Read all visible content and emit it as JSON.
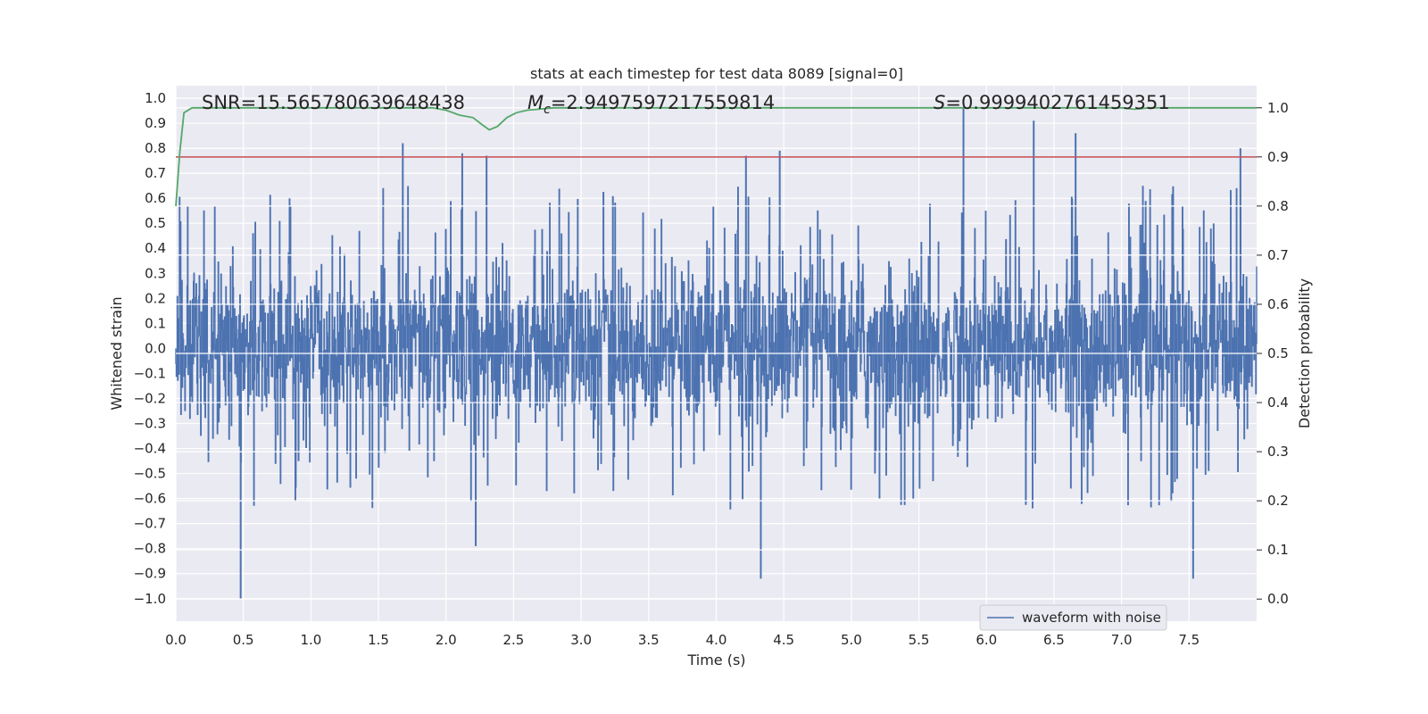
{
  "chart_data": {
    "type": "line",
    "title": "stats at each timestep for test data 8089 [signal=0]",
    "xlabel": "Time (s)",
    "ylabel_left": "Whitened strain",
    "ylabel_right": "Detection probability",
    "xlim": [
      0.0,
      8.0
    ],
    "ylim_left": [
      -1.09,
      1.05
    ],
    "ylim_right": [
      -0.045,
      1.045
    ],
    "x_ticks": [
      "0.0",
      "0.5",
      "1.0",
      "1.5",
      "2.0",
      "2.5",
      "3.0",
      "3.5",
      "4.0",
      "4.5",
      "5.0",
      "5.5",
      "6.0",
      "6.5",
      "7.0",
      "7.5"
    ],
    "y_left_ticks": [
      "1.0",
      "0.9",
      "0.8",
      "0.7",
      "0.6",
      "0.5",
      "0.4",
      "0.3",
      "0.2",
      "0.1",
      "0.0",
      "−0.1",
      "−0.2",
      "−0.3",
      "−0.4",
      "−0.5",
      "−0.6",
      "−0.7",
      "−0.8",
      "−0.9",
      "−1.0"
    ],
    "y_right_ticks": [
      "1.0",
      "0.9",
      "0.8",
      "0.7",
      "0.6",
      "0.5",
      "0.4",
      "0.3",
      "0.2",
      "0.1",
      "0.0"
    ],
    "grid": true,
    "annotations": {
      "snr": "SNR=15.565780639648438",
      "mc_symbol": "M",
      "mc_sub": "c",
      "mc_value": "=2.9497597217559814",
      "s_symbol": "S",
      "s_value": "=0.9999402761459351"
    },
    "threshold": {
      "value": 0.9,
      "color": "#c44e52"
    },
    "series": [
      {
        "name": "waveform with noise",
        "axis": "left",
        "color": "#4c72b0",
        "description": "whitened noise strain sampled densely over 8 s, amplitude mostly within ±0.5 with spikes",
        "peaks": [
          {
            "x": 0.48,
            "y": -1.0
          },
          {
            "x": 1.68,
            "y": 0.82
          },
          {
            "x": 2.12,
            "y": 0.78
          },
          {
            "x": 2.22,
            "y": -0.79
          },
          {
            "x": 2.3,
            "y": 0.77
          },
          {
            "x": 4.22,
            "y": 0.77
          },
          {
            "x": 4.33,
            "y": -0.92
          },
          {
            "x": 4.47,
            "y": 0.79
          },
          {
            "x": 5.83,
            "y": 0.96
          },
          {
            "x": 6.35,
            "y": 0.91
          },
          {
            "x": 6.66,
            "y": 0.86
          },
          {
            "x": 7.53,
            "y": -0.92
          },
          {
            "x": 7.88,
            "y": 0.8
          }
        ]
      },
      {
        "name": "detection probability",
        "axis": "right",
        "color": "#55a868",
        "x": [
          0.0,
          0.03,
          0.06,
          0.12,
          0.2,
          0.4,
          0.8,
          1.2,
          1.6,
          1.9,
          2.0,
          2.1,
          2.2,
          2.27,
          2.32,
          2.38,
          2.45,
          2.52,
          2.6,
          2.8,
          3.0,
          4.0,
          5.0,
          5.5,
          6.0,
          6.5,
          7.0,
          7.1,
          7.2,
          7.4,
          7.6,
          8.0
        ],
        "y": [
          0.8,
          0.91,
          0.99,
          1.0,
          1.0,
          1.0,
          1.0,
          1.0,
          1.0,
          1.0,
          0.995,
          0.985,
          0.98,
          0.965,
          0.955,
          0.962,
          0.98,
          0.99,
          0.995,
          1.0,
          1.0,
          1.0,
          1.0,
          1.0,
          1.0,
          1.0,
          1.0,
          0.997,
          1.0,
          1.0,
          1.0,
          1.0
        ]
      }
    ],
    "legend": {
      "position": "bottom-right",
      "entries": [
        "waveform with noise"
      ]
    }
  }
}
